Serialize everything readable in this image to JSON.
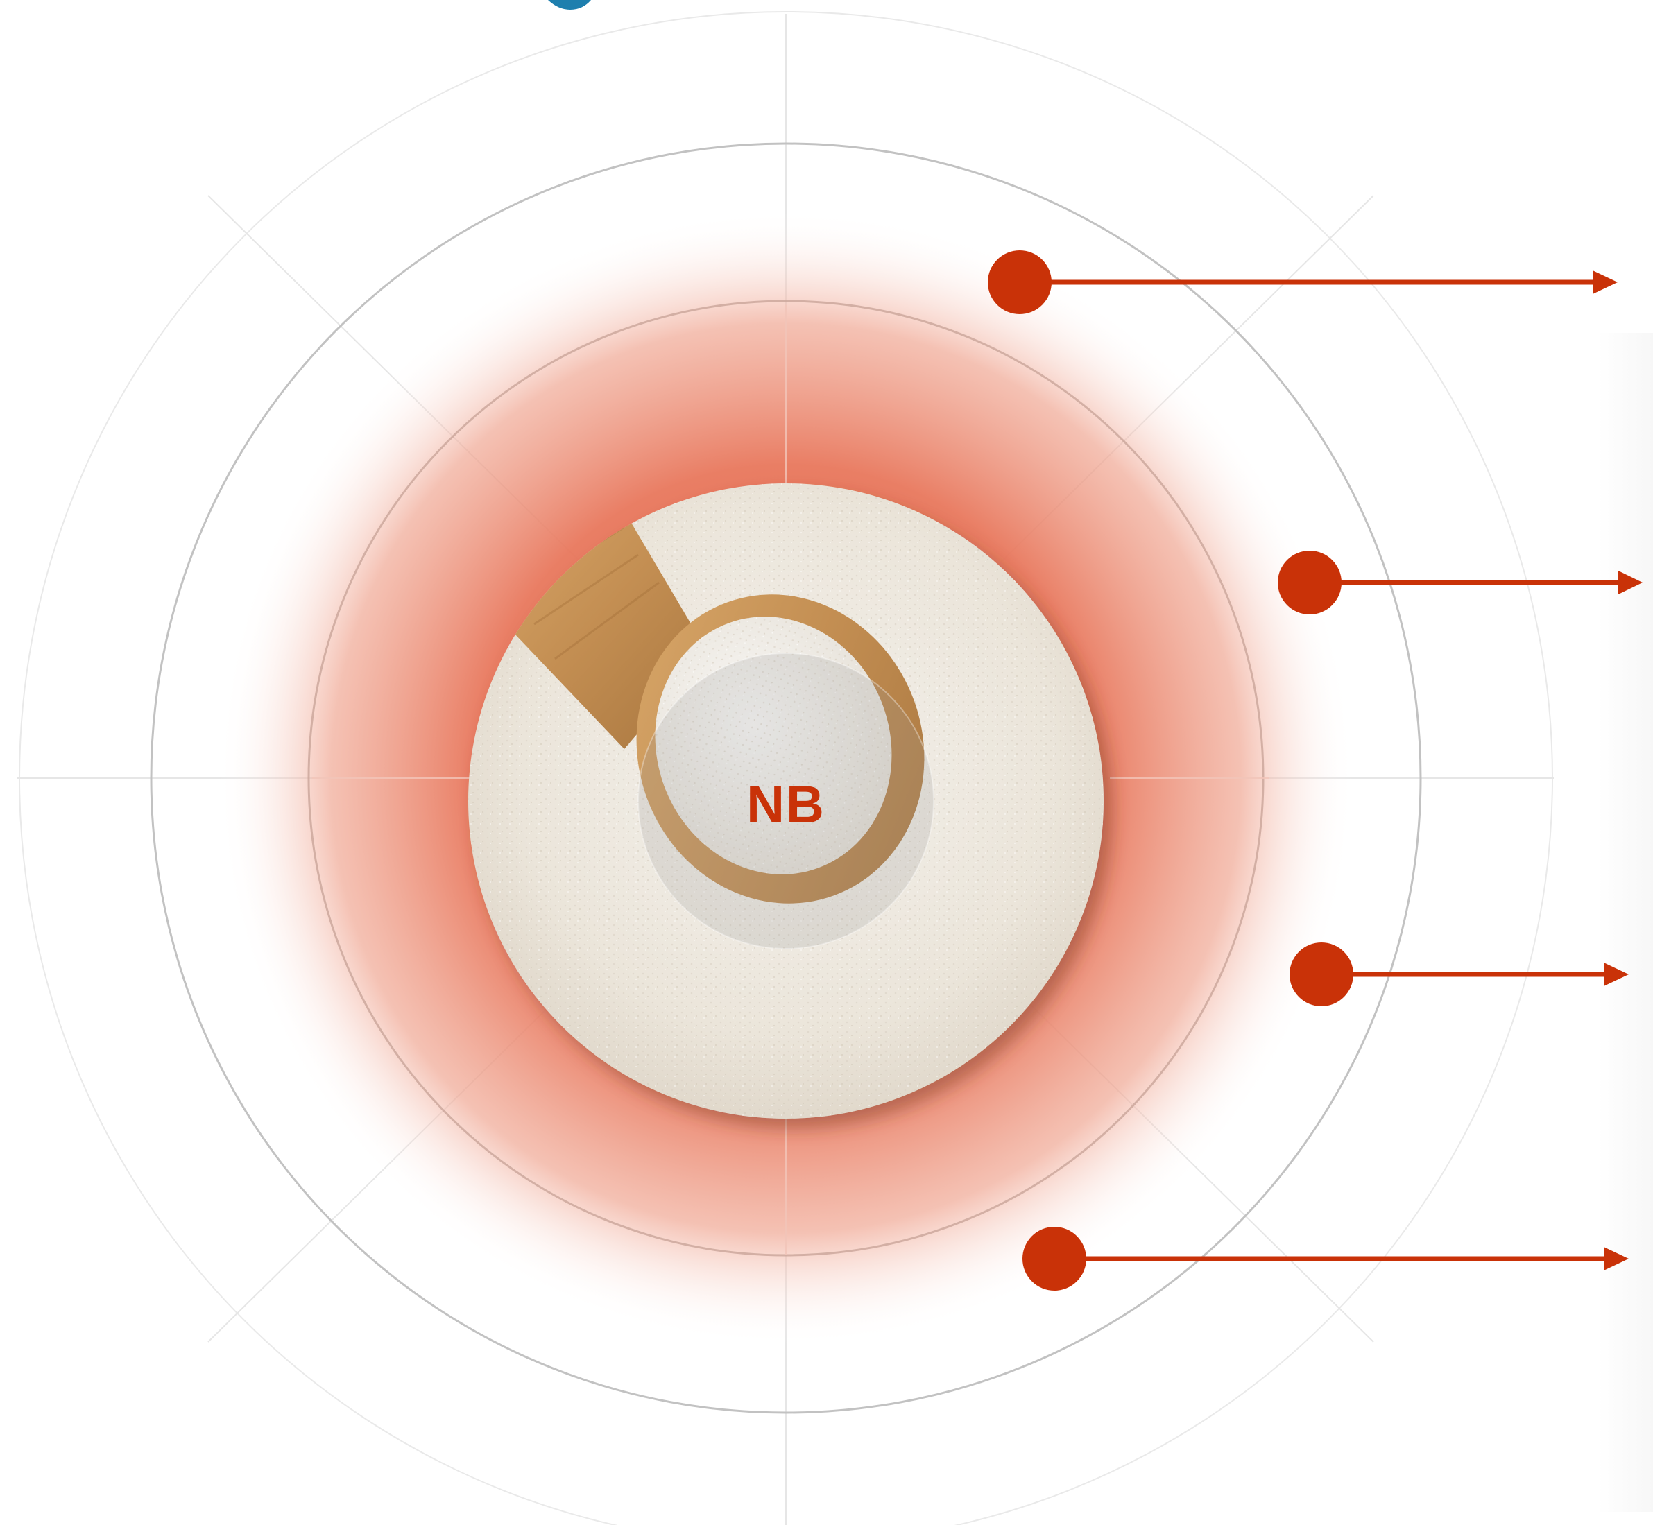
{
  "center_label": "NB",
  "colors": {
    "accent": "#c93208",
    "ring_glow": "#e8775c",
    "grid_line": "#e4e4e4",
    "ring_line": "#c2c2c2",
    "powder": "#ece6dc",
    "spoon": "#c8955a",
    "title_blue": "#1e7fae"
  },
  "pointers": [
    {
      "label": ""
    },
    {
      "label": ""
    },
    {
      "label": ""
    },
    {
      "label": ""
    }
  ]
}
